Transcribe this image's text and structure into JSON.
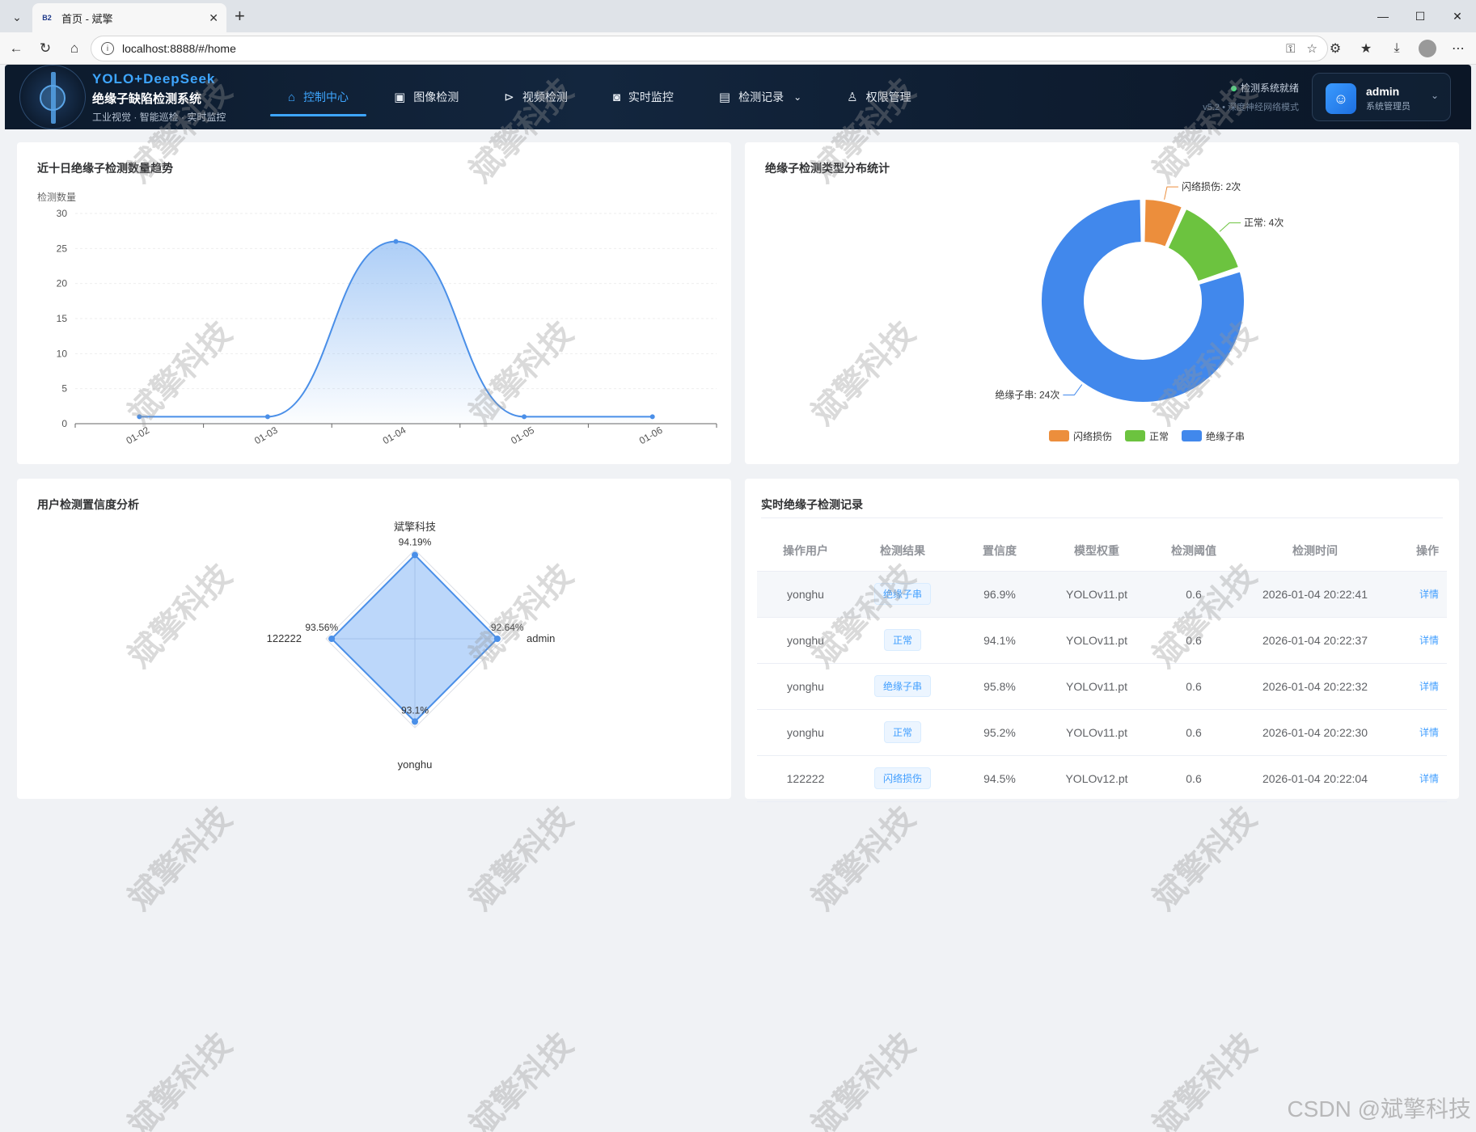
{
  "browser": {
    "tab_title": "首页 - 斌擎",
    "favicon_text": "B2",
    "url": "localhost:8888/#/home"
  },
  "header": {
    "brand_top": "YOLO+DeepSeek",
    "brand_main": "绝缘子缺陷检测系统",
    "brand_sub": "工业视觉 · 智能巡检 · 实时监控",
    "nav": [
      {
        "label": "控制中心",
        "icon": "home-icon",
        "active": true
      },
      {
        "label": "图像检测",
        "icon": "image-icon"
      },
      {
        "label": "视频检测",
        "icon": "play-icon"
      },
      {
        "label": "实时监控",
        "icon": "camera-icon"
      },
      {
        "label": "检测记录",
        "icon": "document-icon",
        "dropdown": true
      },
      {
        "label": "权限管理",
        "icon": "user-icon"
      }
    ],
    "status": "检测系统就绪",
    "version": "v5.2 • 深度神经网络模式",
    "user": {
      "name": "admin",
      "role": "系统管理员"
    }
  },
  "trend": {
    "title": "近十日绝缘子检测数量趋势",
    "ylabel": "检测数量"
  },
  "pie": {
    "title": "绝缘子检测类型分布统计"
  },
  "radar": {
    "title": "用户检测置信度分析"
  },
  "records": {
    "title": "实时绝缘子检测记录",
    "columns": [
      "操作用户",
      "检测结果",
      "置信度",
      "模型权重",
      "检测阈值",
      "检测时间",
      "操作"
    ],
    "rows": [
      {
        "user": "yonghu",
        "result": "绝缘子串",
        "conf": "96.9%",
        "model": "YOLOv11.pt",
        "thresh": "0.6",
        "time": "2026-01-04 20:22:41",
        "action": "详情"
      },
      {
        "user": "yonghu",
        "result": "正常",
        "conf": "94.1%",
        "model": "YOLOv11.pt",
        "thresh": "0.6",
        "time": "2026-01-04 20:22:37",
        "action": "详情"
      },
      {
        "user": "yonghu",
        "result": "绝缘子串",
        "conf": "95.8%",
        "model": "YOLOv11.pt",
        "thresh": "0.6",
        "time": "2026-01-04 20:22:32",
        "action": "详情"
      },
      {
        "user": "yonghu",
        "result": "正常",
        "conf": "95.2%",
        "model": "YOLOv11.pt",
        "thresh": "0.6",
        "time": "2026-01-04 20:22:30",
        "action": "详情"
      },
      {
        "user": "122222",
        "result": "闪络损伤",
        "conf": "94.5%",
        "model": "YOLOv12.pt",
        "thresh": "0.6",
        "time": "2026-01-04 20:22:04",
        "action": "详情"
      }
    ]
  },
  "watermark": "斌擎科技",
  "csdn_mark": "CSDN @斌擎科技",
  "colors": {
    "accent": "#409eff",
    "line": "#4a8fe8",
    "orange": "#ec8e3c",
    "green": "#6cc33f",
    "blue": "#4188ec"
  },
  "chart_data": [
    {
      "type": "area",
      "title": "近十日绝缘子检测数量趋势",
      "ylabel": "检测数量",
      "x": [
        "01-02",
        "01-03",
        "01-04",
        "01-05",
        "01-06"
      ],
      "series": [
        {
          "values": [
            1,
            1,
            26,
            1,
            1
          ]
        }
      ],
      "ylim": [
        0,
        30
      ],
      "yticks": [
        0,
        5,
        10,
        15,
        20,
        25,
        30
      ],
      "smooth": true
    },
    {
      "type": "pie",
      "title": "绝缘子检测类型分布统计",
      "donut": true,
      "slices": [
        {
          "name": "闪络损伤",
          "value": 2,
          "label": "闪络损伤: 2次",
          "color": "#ec8e3c"
        },
        {
          "name": "正常",
          "value": 4,
          "label": "正常: 4次",
          "color": "#6cc33f"
        },
        {
          "name": "绝缘子串",
          "value": 24,
          "label": "绝缘子串: 24次",
          "color": "#4188ec"
        }
      ],
      "legend_position": "bottom"
    },
    {
      "type": "radar",
      "title": "用户检测置信度分析",
      "axes": [
        {
          "name": "斌擎科技",
          "value": 94.19,
          "label": "94.19%"
        },
        {
          "name": "admin",
          "value": 92.64,
          "label": "92.64%"
        },
        {
          "name": "yonghu",
          "value": 93.1,
          "label": "93.1%"
        },
        {
          "name": "122222",
          "value": 93.56,
          "label": "93.56%"
        }
      ],
      "max": 100
    }
  ]
}
